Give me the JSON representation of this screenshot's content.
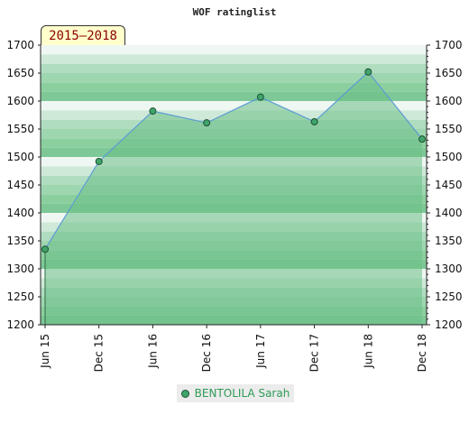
{
  "chart_data": {
    "type": "area",
    "title": "WOF ratinglist",
    "period_label": "2015–2018",
    "x": [
      "Jun 15",
      "Dec 15",
      "Jun 16",
      "Dec 16",
      "Jun 17",
      "Dec 17",
      "Jun 18",
      "Dec 18"
    ],
    "series": [
      {
        "name": "BENTOLILA Sarah",
        "values": [
          1335,
          1492,
          1582,
          1561,
          1607,
          1563,
          1652,
          1532
        ]
      }
    ],
    "ylim": [
      1200,
      1700
    ],
    "y_ticks": [
      1200,
      1250,
      1300,
      1350,
      1400,
      1450,
      1500,
      1550,
      1600,
      1650,
      1700
    ],
    "xlabel": "",
    "ylabel": "",
    "grid": true,
    "legend_position": "bottom",
    "colors": {
      "area_fill": "#6cbf86",
      "line": "#5b9bd5",
      "marker_fill": "#3fa56a",
      "marker_stroke": "#1f4f33",
      "band_dark": "#7dc896",
      "band_mid": "#b0dcc0",
      "band_light": "#eef7f1",
      "legend_text": "#2e9a56",
      "period_text": "#8b0000",
      "period_bg": "#ffffcc"
    }
  }
}
